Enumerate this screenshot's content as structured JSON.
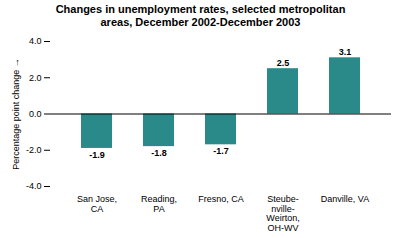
{
  "chart_data": {
    "type": "bar",
    "title": "Changes in unemployment rates, selected metropolitan\nareas, December 2002-December 2003",
    "categories": [
      "San Jose,\nCA",
      "Reading,\nPA",
      "Fresno, CA",
      "Steube-\nnville-\nWeirton,\nOH-WV",
      "Danville, VA"
    ],
    "values": [
      -1.9,
      -1.8,
      -1.7,
      2.5,
      3.1
    ],
    "color": "#2a8a8a",
    "ylim": [
      -4.0,
      4.0
    ],
    "yticks": [
      {
        "value": -4.0,
        "label": "-4.0"
      },
      {
        "value": -2.0,
        "label": "-2.0"
      },
      {
        "value": 0.0,
        "label": "0.0"
      },
      {
        "value": 2.0,
        "label": "2.0"
      },
      {
        "value": 4.0,
        "label": "4.0"
      }
    ],
    "ylabel": "Percentage point change",
    "data_labels": true,
    "grid": false
  }
}
